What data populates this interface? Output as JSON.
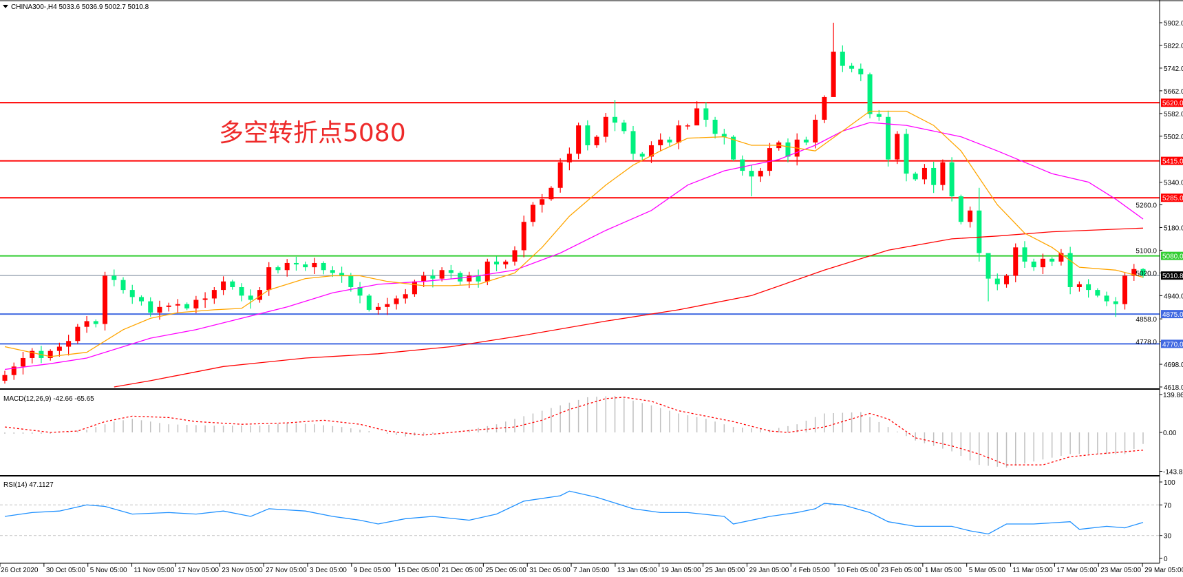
{
  "header": {
    "symbol_info": "CHINA300-,H4  5033.6 5036.9 5002.7 5010.8"
  },
  "annotation": {
    "text": "多空转折点5080"
  },
  "colors": {
    "bull": "#ff0000",
    "bear": "#00f07f",
    "ma_fast": "#ffa500",
    "ma_mid": "#ff00ff",
    "ma_slow": "#ff0000",
    "rsi": "#1e90ff",
    "macd_hist": "#c0c0c0",
    "macd_signal": "#ff0000"
  },
  "levels": [
    {
      "label": "5620.0",
      "value": 5620,
      "color": "#ff0000"
    },
    {
      "label": "5415.0",
      "value": 5415,
      "color": "#ff0000"
    },
    {
      "label": "5285.0",
      "value": 5285,
      "color": "#ff0000"
    },
    {
      "label": "5080.0",
      "value": 5080,
      "color": "#32cd32"
    },
    {
      "label": "5010.8",
      "value": 5010.8,
      "color": "#000000",
      "line": "#778899"
    },
    {
      "label": "4875.0",
      "value": 4875,
      "color": "#4169e1"
    },
    {
      "label": "4770.0",
      "value": 4770,
      "color": "#4169e1"
    }
  ],
  "price_axis": [
    "5902.0",
    "5822.0",
    "5742.0",
    "5662.0",
    "5582.0",
    "5502.0",
    "5340.0",
    "5260.0",
    "5180.0",
    "5100.0",
    "5020.0",
    "4940.0",
    "4858.0",
    "4778.0",
    "4698.0",
    "4618.0"
  ],
  "time_axis": [
    "26 Oct 2020",
    "30 Oct 05:00",
    "5 Nov 05:00",
    "11 Nov 05:00",
    "17 Nov 05:00",
    "23 Nov 05:00",
    "27 Nov 05:00",
    "3 Dec 05:00",
    "9 Dec 05:00",
    "15 Dec 05:00",
    "21 Dec 05:00",
    "25 Dec 05:00",
    "31 Dec 05:00",
    "7 Jan 05:00",
    "13 Jan 05:00",
    "19 Jan 05:00",
    "25 Jan 05:00",
    "29 Jan 05:00",
    "4 Feb 05:00",
    "10 Feb 05:00",
    "23 Feb 05:00",
    "1 Mar 05:00",
    "5 Mar 05:00",
    "11 Mar 05:00",
    "17 Mar 05:00",
    "23 Mar 05:00",
    "29 Mar 05:00"
  ],
  "macd": {
    "title": "MACD(12,26,9) -42.66 -65.65",
    "axis": [
      "139.86",
      "0.00",
      "-143.82"
    ]
  },
  "rsi": {
    "title": "RSI(14) 47.1127",
    "axis": [
      "100",
      "70",
      "30",
      "0"
    ]
  },
  "chart_data": {
    "type": "candlestick",
    "ylim": [
      4618,
      5902
    ],
    "last_bar": {
      "open": 5033.6,
      "high": 5036.9,
      "low": 5002.7,
      "close": 5010.8
    },
    "first_open": 4640,
    "closes": [
      4660,
      4690,
      4720,
      4745,
      4720,
      4745,
      4760,
      4780,
      4830,
      4850,
      4840,
      5010,
      4995,
      4960,
      4935,
      4920,
      4880,
      4900,
      4905,
      4910,
      4895,
      4925,
      4930,
      4960,
      4990,
      4970,
      4940,
      4925,
      4960,
      5040,
      5030,
      5055,
      5050,
      5040,
      5055,
      5030,
      5020,
      5010,
      4970,
      4940,
      4890,
      4900,
      4910,
      4930,
      4945,
      4990,
      5010,
      5000,
      5030,
      5020,
      4990,
      5010,
      4990,
      5060,
      5050,
      5060,
      5100,
      5200,
      5260,
      5280,
      5320,
      5410,
      5440,
      5540,
      5470,
      5500,
      5570,
      5550,
      5520,
      5440,
      5430,
      5470,
      5490,
      5480,
      5540,
      5540,
      5600,
      5560,
      5510,
      5500,
      5420,
      5380,
      5360,
      5380,
      5460,
      5480,
      5430,
      5490,
      5480,
      5560,
      5640,
      5800,
      5750,
      5740,
      5720,
      5580,
      5570,
      5420,
      5510,
      5370,
      5350,
      5390,
      5330,
      5410,
      5290,
      5200,
      5240,
      5090,
      5000,
      4980,
      5010,
      5110,
      5060,
      5040,
      5070,
      5060,
      5090,
      4970,
      4980,
      4960,
      4940,
      4920,
      4910,
      5010,
      5033.6,
      5010.8
    ],
    "extremes": [
      [
        0,
        4675,
        4630
      ],
      [
        67,
        5630,
        5520
      ],
      [
        76,
        5625,
        5560
      ],
      [
        82,
        5400,
        5290
      ],
      [
        91,
        5902,
        5740
      ],
      [
        107,
        5320,
        5060
      ],
      [
        108,
        5060,
        4920
      ],
      [
        122,
        4935,
        4865
      ],
      [
        125,
        5036.9,
        5002.7
      ]
    ],
    "ma_fast": [
      [
        0,
        4760
      ],
      [
        5,
        4725
      ],
      [
        9,
        4740
      ],
      [
        13,
        4820
      ],
      [
        16,
        4860
      ],
      [
        19,
        4880
      ],
      [
        23,
        4890
      ],
      [
        26,
        4895
      ],
      [
        29,
        4960
      ],
      [
        33,
        5000
      ],
      [
        36,
        5010
      ],
      [
        39,
        5010
      ],
      [
        42,
        4990
      ],
      [
        46,
        4975
      ],
      [
        49,
        4975
      ],
      [
        52,
        4980
      ],
      [
        56,
        5020
      ],
      [
        59,
        5110
      ],
      [
        62,
        5220
      ],
      [
        66,
        5330
      ],
      [
        69,
        5400
      ],
      [
        72,
        5450
      ],
      [
        75,
        5495
      ],
      [
        79,
        5500
      ],
      [
        82,
        5470
      ],
      [
        85,
        5470
      ],
      [
        89,
        5450
      ],
      [
        92,
        5520
      ],
      [
        95,
        5590
      ],
      [
        99,
        5590
      ],
      [
        102,
        5540
      ],
      [
        105,
        5450
      ],
      [
        109,
        5260
      ],
      [
        112,
        5160
      ],
      [
        115,
        5110
      ],
      [
        118,
        5040
      ],
      [
        122,
        5030
      ],
      [
        125,
        5005
      ]
    ],
    "ma_mid": [
      [
        0,
        4680
      ],
      [
        5,
        4700
      ],
      [
        9,
        4720
      ],
      [
        13,
        4760
      ],
      [
        16,
        4790
      ],
      [
        21,
        4820
      ],
      [
        26,
        4860
      ],
      [
        31,
        4900
      ],
      [
        36,
        4950
      ],
      [
        41,
        4980
      ],
      [
        46,
        4990
      ],
      [
        51,
        5005
      ],
      [
        56,
        5030
      ],
      [
        61,
        5090
      ],
      [
        66,
        5170
      ],
      [
        71,
        5240
      ],
      [
        75,
        5330
      ],
      [
        79,
        5380
      ],
      [
        82,
        5400
      ],
      [
        85,
        5420
      ],
      [
        89,
        5470
      ],
      [
        92,
        5520
      ],
      [
        95,
        5550
      ],
      [
        99,
        5540
      ],
      [
        102,
        5520
      ],
      [
        105,
        5500
      ],
      [
        109,
        5450
      ],
      [
        112,
        5410
      ],
      [
        115,
        5370
      ],
      [
        119,
        5340
      ],
      [
        122,
        5280
      ],
      [
        125,
        5210
      ]
    ],
    "ma_slow": [
      [
        12,
        4618
      ],
      [
        16,
        4640
      ],
      [
        24,
        4690
      ],
      [
        33,
        4720
      ],
      [
        41,
        4735
      ],
      [
        49,
        4760
      ],
      [
        57,
        4800
      ],
      [
        66,
        4850
      ],
      [
        74,
        4890
      ],
      [
        82,
        4940
      ],
      [
        90,
        5030
      ],
      [
        97,
        5100
      ],
      [
        104,
        5140
      ],
      [
        109,
        5150
      ],
      [
        115,
        5165
      ],
      [
        125,
        5178
      ]
    ],
    "macd_hist": [
      [
        0,
        -5
      ],
      [
        5,
        -5
      ],
      [
        9,
        10
      ],
      [
        12,
        40
      ],
      [
        14,
        50
      ],
      [
        18,
        30
      ],
      [
        23,
        25
      ],
      [
        28,
        25
      ],
      [
        31,
        35
      ],
      [
        34,
        30
      ],
      [
        37,
        20
      ],
      [
        41,
        0
      ],
      [
        44,
        -15
      ],
      [
        47,
        -5
      ],
      [
        51,
        10
      ],
      [
        54,
        30
      ],
      [
        57,
        60
      ],
      [
        61,
        100
      ],
      [
        64,
        130
      ],
      [
        67,
        135
      ],
      [
        71,
        100
      ],
      [
        74,
        70
      ],
      [
        77,
        50
      ],
      [
        80,
        20
      ],
      [
        84,
        10
      ],
      [
        87,
        30
      ],
      [
        90,
        70
      ],
      [
        94,
        75
      ],
      [
        97,
        20
      ],
      [
        100,
        -30
      ],
      [
        104,
        -70
      ],
      [
        107,
        -120
      ],
      [
        110,
        -130
      ],
      [
        114,
        -100
      ],
      [
        117,
        -80
      ],
      [
        120,
        -80
      ],
      [
        123,
        -80
      ],
      [
        125,
        -42.66
      ]
    ],
    "macd_signal": [
      [
        0,
        20
      ],
      [
        5,
        0
      ],
      [
        8,
        5
      ],
      [
        11,
        40
      ],
      [
        14,
        60
      ],
      [
        18,
        55
      ],
      [
        21,
        40
      ],
      [
        26,
        30
      ],
      [
        31,
        35
      ],
      [
        35,
        45
      ],
      [
        39,
        30
      ],
      [
        42,
        5
      ],
      [
        46,
        -10
      ],
      [
        49,
        0
      ],
      [
        52,
        10
      ],
      [
        56,
        20
      ],
      [
        59,
        45
      ],
      [
        62,
        85
      ],
      [
        66,
        125
      ],
      [
        68,
        130
      ],
      [
        71,
        115
      ],
      [
        74,
        80
      ],
      [
        77,
        60
      ],
      [
        80,
        40
      ],
      [
        84,
        5
      ],
      [
        86,
        0
      ],
      [
        90,
        20
      ],
      [
        95,
        70
      ],
      [
        97,
        50
      ],
      [
        100,
        -20
      ],
      [
        104,
        -50
      ],
      [
        107,
        -80
      ],
      [
        110,
        -120
      ],
      [
        114,
        -120
      ],
      [
        117,
        -90
      ],
      [
        120,
        -80
      ],
      [
        125,
        -65.65
      ]
    ],
    "macd_ylim": [
      -143.82,
      139.86
    ],
    "rsi_values": [
      [
        0,
        55
      ],
      [
        3,
        60
      ],
      [
        6,
        62
      ],
      [
        9,
        70
      ],
      [
        11,
        68
      ],
      [
        14,
        58
      ],
      [
        18,
        60
      ],
      [
        21,
        58
      ],
      [
        24,
        62
      ],
      [
        27,
        55
      ],
      [
        29,
        65
      ],
      [
        33,
        62
      ],
      [
        36,
        55
      ],
      [
        39,
        50
      ],
      [
        41,
        45
      ],
      [
        44,
        52
      ],
      [
        47,
        55
      ],
      [
        51,
        50
      ],
      [
        54,
        58
      ],
      [
        57,
        75
      ],
      [
        61,
        82
      ],
      [
        62,
        88
      ],
      [
        65,
        80
      ],
      [
        69,
        65
      ],
      [
        72,
        60
      ],
      [
        75,
        60
      ],
      [
        79,
        55
      ],
      [
        80,
        45
      ],
      [
        84,
        55
      ],
      [
        87,
        60
      ],
      [
        89,
        65
      ],
      [
        90,
        72
      ],
      [
        92,
        70
      ],
      [
        95,
        60
      ],
      [
        97,
        48
      ],
      [
        100,
        42
      ],
      [
        104,
        42
      ],
      [
        106,
        36
      ],
      [
        108,
        32
      ],
      [
        110,
        45
      ],
      [
        113,
        45
      ],
      [
        117,
        48
      ],
      [
        118,
        38
      ],
      [
        121,
        42
      ],
      [
        123,
        40
      ],
      [
        125,
        47.11
      ]
    ],
    "rsi_levels": [
      70,
      30
    ]
  }
}
